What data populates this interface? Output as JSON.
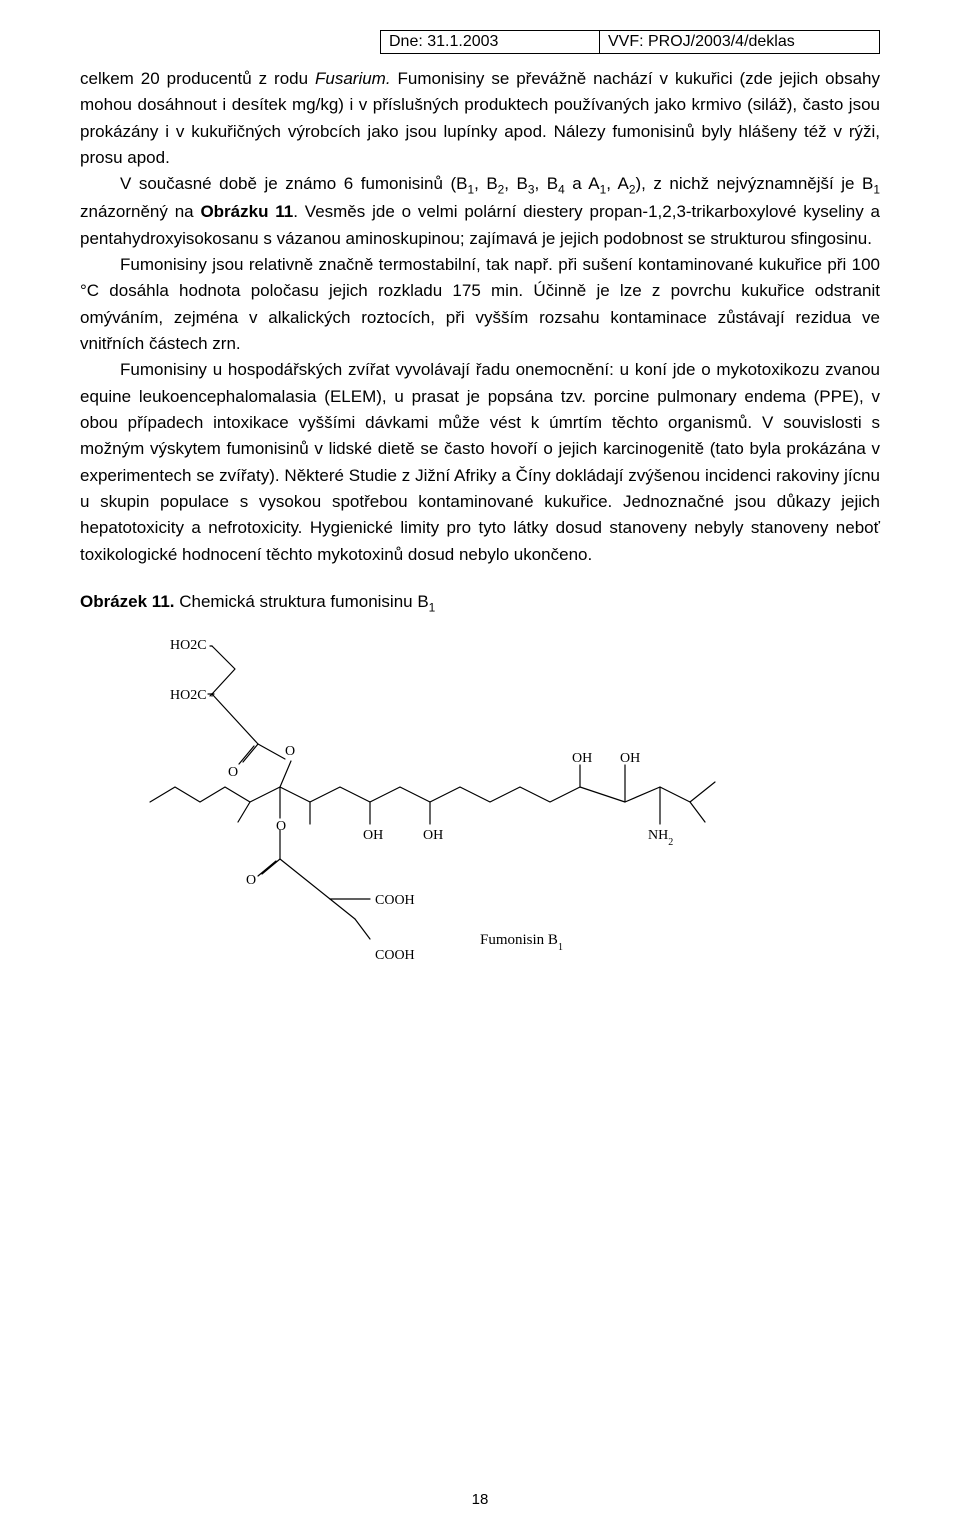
{
  "header": {
    "date_label": "Dne: 31.1.2003",
    "proj_label": "VVF: PROJ/2003/4/deklas"
  },
  "paragraphs": {
    "p1_a": "celkem 20 producentů z rodu ",
    "p1_i": "Fusarium.",
    "p1_b": " Fumonisiny se převážně nachází v kukuřici (zde jejich obsahy mohou dosáhnout i desítek mg/kg) i v příslušných produktech používaných jako krmivo (siláž), často jsou prokázány i v kukuřičných výrobcích jako jsou lupínky apod. Nálezy fumonisinů byly hlášeny též v rýži, prosu apod.",
    "p2_a": "V současné době je známo 6 fumonisinů (B",
    "p2_b": ", B",
    "p2_c": ", B",
    "p2_d": ", B",
    "p2_e": " a A",
    "p2_f": ", A",
    "p2_g": "), z nichž nejvýznamnější je B",
    "p2_h": " znázorněný na ",
    "p2_bold": "Obrázku 11",
    "p2_i": ". Vesměs jde o velmi polární diestery propan-1,2,3-trikarboxylové kyseliny a pentahydroxyisokosanu s vázanou aminoskupinou; zajímavá je jejich podobnost se strukturou sfingosinu.",
    "p3": "Fumonisiny jsou relativně značně termostabilní, tak např. při sušení kontaminované kukuřice při 100 °C dosáhla hodnota poločasu jejich rozkladu 175 min. Účinně je lze  z povrchu kukuřice odstranit omýváním, zejména v alkalických roztocích, při vyšším rozsahu kontaminace zůstávají rezidua ve vnitřních částech zrn.",
    "p4": "Fumonisiny u hospodářských zvířat vyvolávají řadu onemocnění: u koní jde o mykotoxikozu zvanou equine leukoencephalomalasia (ELEM), u prasat je popsána tzv. porcine pulmonary endema (PPE), v obou případech intoxikace vyššími dávkami může vést k úmrtím těchto organismů. V souvislosti s možným výskytem fumonisinů v lidské dietě se často hovoří o jejich karcinogenitě (tato byla prokázána v experimentech se zvířaty). Některé Studie z Jižní Afriky a Číny dokládají zvýšenou incidenci rakoviny jícnu u skupin populace s vysokou spotřebou kontaminované kukuřice. Jednoznačné jsou důkazy jejich hepatotoxicity a nefrotoxicity. Hygienické limity pro tyto látky dosud stanoveny nebyly stanoveny neboť toxikologické hodnocení těchto mykotoxinů dosud nebylo ukončeno."
  },
  "caption": {
    "bold": "Obrázek 11.",
    "rest": " Chemická struktura fumonisinu B",
    "sub": "1"
  },
  "chem": {
    "ho2c_1": "HO2C",
    "ho2c_2": "HO2C",
    "o1": "O",
    "o2": "O",
    "o3": "O",
    "o4": "O",
    "oh1": "OH",
    "oh2": "OH",
    "oh3": "OH",
    "nh2": "NH2",
    "cooh1": "COOH",
    "cooh2": "COOH",
    "name": "Fumonisin B1",
    "stroke": "#000000",
    "stroke_width": 1.2,
    "label_fontsize": 14,
    "small_fontsize": 10,
    "name_fontsize": 15
  },
  "page_number": "18"
}
